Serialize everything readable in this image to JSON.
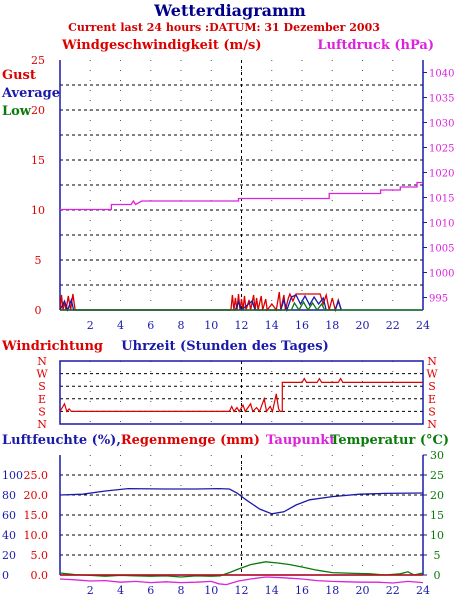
{
  "header": {
    "title": "Wetterdiagramm",
    "subtitle": "Current last 24 hours :DATUM: 31 Dezember 2003"
  },
  "colors": {
    "red": "#dd0000",
    "blue": "#1a1aaa",
    "green": "#0a7a0a",
    "magenta": "#dd22dd",
    "navy": "#00008b"
  },
  "chart_data": [
    {
      "type": "line",
      "name": "wind-pressure-panel",
      "ylabel_left": "Windgeschwindigkeit (m/s)",
      "ylabel_right": "Luftdruck (hPa)",
      "legend": [
        "Gust",
        "Average",
        "Low"
      ],
      "x_ticks": [
        "2",
        "4",
        "6",
        "8",
        "10",
        "12",
        "14",
        "16",
        "18",
        "20",
        "22",
        "24"
      ],
      "xlim": [
        0,
        24
      ],
      "ylim_left": [
        0,
        25
      ],
      "y_ticks_left": [
        "0",
        "5",
        "10",
        "15",
        "20",
        "25"
      ],
      "ylim_right": [
        992.5,
        1042.5
      ],
      "y_ticks_right": [
        "995",
        "1000",
        "1005",
        "1010",
        "1015",
        "1020",
        "1025",
        "1030",
        "1035",
        "1040"
      ],
      "series": [
        {
          "name": "Luftdruck",
          "axis": "right",
          "points": [
            [
              0,
              1012.6
            ],
            [
              3.4,
              1012.6
            ],
            [
              3.4,
              1013.6
            ],
            [
              4.7,
              1013.6
            ],
            [
              4.85,
              1014.3
            ],
            [
              5.0,
              1013.6
            ],
            [
              5.4,
              1014.3
            ],
            [
              11.8,
              1014.3
            ],
            [
              11.8,
              1014.8
            ],
            [
              17.8,
              1014.8
            ],
            [
              17.8,
              1015.8
            ],
            [
              21.2,
              1015.8
            ],
            [
              21.2,
              1016.5
            ],
            [
              22.5,
              1016.5
            ],
            [
              22.5,
              1017.1
            ],
            [
              23.6,
              1017.1
            ],
            [
              23.6,
              1018.0
            ],
            [
              24,
              1018.0
            ]
          ]
        },
        {
          "name": "Gust",
          "axis": "left",
          "points": [
            [
              0,
              0
            ],
            [
              0.1,
              1.5
            ],
            [
              0.2,
              0
            ],
            [
              0.3,
              0.8
            ],
            [
              0.4,
              0
            ],
            [
              0.55,
              1.4
            ],
            [
              0.7,
              0
            ],
            [
              0.85,
              1.6
            ],
            [
              1.0,
              0
            ],
            [
              11.3,
              0
            ],
            [
              11.4,
              1.5
            ],
            [
              11.5,
              0
            ],
            [
              11.6,
              1.2
            ],
            [
              11.7,
              0
            ],
            [
              11.8,
              1.6
            ],
            [
              11.9,
              0
            ],
            [
              12.0,
              1.1
            ],
            [
              12.1,
              0
            ],
            [
              12.2,
              1.4
            ],
            [
              12.3,
              0
            ],
            [
              12.5,
              1.0
            ],
            [
              12.6,
              0
            ],
            [
              12.8,
              1.5
            ],
            [
              12.9,
              0
            ],
            [
              13.0,
              1.2
            ],
            [
              13.1,
              0
            ],
            [
              13.3,
              1.4
            ],
            [
              13.4,
              0
            ],
            [
              13.6,
              1.1
            ],
            [
              13.7,
              0
            ],
            [
              14.0,
              0.6
            ],
            [
              14.3,
              0
            ],
            [
              14.5,
              1.8
            ],
            [
              14.6,
              0
            ],
            [
              14.8,
              1.5
            ],
            [
              14.9,
              0
            ],
            [
              15.1,
              1.2
            ],
            [
              15.2,
              1.6
            ],
            [
              15.4,
              0.9
            ],
            [
              15.6,
              1.6
            ],
            [
              17.2,
              1.6
            ],
            [
              17.4,
              0.6
            ],
            [
              17.6,
              1.5
            ],
            [
              17.8,
              0
            ],
            [
              18.0,
              1.2
            ],
            [
              18.2,
              0
            ],
            [
              18.4,
              1.0
            ],
            [
              18.6,
              0
            ]
          ]
        },
        {
          "name": "Average",
          "axis": "left",
          "points": [
            [
              0,
              0
            ],
            [
              0.3,
              0.9
            ],
            [
              0.5,
              0
            ],
            [
              0.75,
              1.0
            ],
            [
              0.9,
              0
            ],
            [
              11.6,
              0
            ],
            [
              11.8,
              0.8
            ],
            [
              12.0,
              0
            ],
            [
              12.7,
              0.9
            ],
            [
              12.9,
              0
            ],
            [
              14.6,
              0
            ],
            [
              14.8,
              1.0
            ],
            [
              15.0,
              0
            ],
            [
              15.3,
              1.3
            ],
            [
              15.6,
              1.5
            ],
            [
              15.9,
              0.6
            ],
            [
              16.2,
              1.4
            ],
            [
              16.5,
              0.5
            ],
            [
              16.8,
              1.3
            ],
            [
              17.1,
              0.6
            ],
            [
              17.4,
              1.2
            ],
            [
              17.6,
              0
            ],
            [
              18.2,
              0
            ],
            [
              18.4,
              0.9
            ],
            [
              18.6,
              0
            ]
          ]
        },
        {
          "name": "Low",
          "axis": "left",
          "points": [
            [
              0,
              0
            ],
            [
              15.3,
              0
            ],
            [
              15.5,
              0.7
            ],
            [
              15.8,
              0
            ],
            [
              16.1,
              0.8
            ],
            [
              16.4,
              0
            ],
            [
              16.7,
              0.7
            ],
            [
              17.0,
              0
            ],
            [
              17.3,
              0.6
            ],
            [
              17.5,
              0
            ],
            [
              24,
              0
            ]
          ]
        }
      ]
    },
    {
      "type": "line",
      "name": "wind-direction-panel",
      "ylabel_left": "Windrichtung",
      "xlabel": "Uhrzeit (Stunden des Tages)",
      "y_ticks": [
        "N",
        "S",
        "E",
        "S",
        "W",
        "N"
      ],
      "series": [
        {
          "name": "Windrichtung",
          "points": [
            [
              0,
              1.0
            ],
            [
              0.3,
              1.6
            ],
            [
              0.45,
              1.0
            ],
            [
              0.6,
              1.2
            ],
            [
              0.75,
              1.0
            ],
            [
              11.2,
              1.0
            ],
            [
              11.35,
              1.4
            ],
            [
              11.5,
              1.0
            ],
            [
              11.7,
              1.3
            ],
            [
              11.85,
              1.0
            ],
            [
              12.1,
              1.5
            ],
            [
              12.25,
              1.0
            ],
            [
              12.6,
              1.6
            ],
            [
              12.75,
              1.0
            ],
            [
              13.0,
              1.3
            ],
            [
              13.2,
              1.0
            ],
            [
              13.5,
              2.0
            ],
            [
              13.65,
              1.0
            ],
            [
              13.9,
              1.4
            ],
            [
              14.05,
              1.0
            ],
            [
              14.3,
              2.4
            ],
            [
              14.45,
              1.2
            ],
            [
              14.55,
              1.0
            ],
            [
              14.7,
              1.0
            ],
            [
              14.7,
              3.3
            ],
            [
              16.0,
              3.3
            ],
            [
              16.15,
              3.6
            ],
            [
              16.3,
              3.3
            ],
            [
              17.0,
              3.3
            ],
            [
              17.15,
              3.6
            ],
            [
              17.3,
              3.3
            ],
            [
              18.4,
              3.3
            ],
            [
              18.55,
              3.6
            ],
            [
              18.7,
              3.3
            ],
            [
              24,
              3.3
            ]
          ]
        }
      ]
    },
    {
      "type": "line",
      "name": "humidity-temperature-panel",
      "ylabel_left": "Luftfeuchte (%),Regenmenge (mm)",
      "ylabel_mid": "Taupunkt",
      "ylabel_right": "Temperatur (°C)",
      "x_ticks": [
        "2",
        "4",
        "6",
        "8",
        "10",
        "12",
        "14",
        "16",
        "18",
        "20",
        "22",
        "24"
      ],
      "y_ticks_left_outer": [
        "0",
        "20",
        "40",
        "60",
        "80",
        "100"
      ],
      "y_ticks_left_inner": [
        "0.0",
        "5.0",
        "10.0",
        "15.0",
        "20.0",
        "25.0"
      ],
      "y_ticks_right": [
        "0",
        "5",
        "10",
        "15",
        "20",
        "25",
        "30"
      ],
      "ylim_right": [
        0,
        30
      ],
      "series": [
        {
          "name": "Luftfeuchte",
          "points": [
            [
              0,
              20.0
            ],
            [
              1.5,
              20.2
            ],
            [
              3.0,
              21.0
            ],
            [
              4.5,
              21.6
            ],
            [
              7,
              21.5
            ],
            [
              9,
              21.5
            ],
            [
              10.5,
              21.6
            ],
            [
              11.2,
              21.5
            ],
            [
              11.7,
              20.5
            ],
            [
              12.3,
              18.8
            ],
            [
              13.2,
              16.5
            ],
            [
              14,
              15.3
            ],
            [
              14.8,
              15.8
            ],
            [
              15.6,
              17.5
            ],
            [
              16.5,
              18.8
            ],
            [
              18,
              19.6
            ],
            [
              19.8,
              20.2
            ],
            [
              21.5,
              20.4
            ],
            [
              24,
              20.5
            ]
          ]
        },
        {
          "name": "Temperatur",
          "points": [
            [
              0,
              0.5
            ],
            [
              1,
              0.1
            ],
            [
              2,
              -0.1
            ],
            [
              3,
              -0.3
            ],
            [
              4,
              -0.1
            ],
            [
              5,
              -0.2
            ],
            [
              6,
              -0.3
            ],
            [
              7,
              -0.2
            ],
            [
              8,
              -0.5
            ],
            [
              9,
              -0.2
            ],
            [
              10,
              -0.3
            ],
            [
              10.6,
              -0.2
            ],
            [
              11.2,
              0.6
            ],
            [
              11.8,
              1.5
            ],
            [
              12.6,
              2.6
            ],
            [
              13.6,
              3.3
            ],
            [
              14.4,
              3.0
            ],
            [
              15.2,
              2.6
            ],
            [
              16,
              2.0
            ],
            [
              17,
              1.2
            ],
            [
              18,
              0.6
            ],
            [
              19.5,
              0.4
            ],
            [
              20.5,
              0.3
            ],
            [
              21.5,
              0.0
            ],
            [
              22.5,
              0.3
            ],
            [
              23,
              0.8
            ],
            [
              23.4,
              0.0
            ],
            [
              24,
              0.5
            ]
          ]
        },
        {
          "name": "Taupunkt",
          "points": [
            [
              0,
              -1.0
            ],
            [
              1,
              -1.2
            ],
            [
              2,
              -1.5
            ],
            [
              3,
              -1.4
            ],
            [
              4,
              -1.8
            ],
            [
              5,
              -1.6
            ],
            [
              6,
              -1.9
            ],
            [
              7,
              -1.7
            ],
            [
              8,
              -1.9
            ],
            [
              9,
              -1.8
            ],
            [
              10,
              -1.6
            ],
            [
              10.5,
              -2.2
            ],
            [
              11,
              -2.4
            ],
            [
              11.8,
              -1.5
            ],
            [
              12.6,
              -1.0
            ],
            [
              13.6,
              -0.5
            ],
            [
              14.8,
              -0.7
            ],
            [
              16,
              -1.0
            ],
            [
              17,
              -1.4
            ],
            [
              18,
              -1.6
            ],
            [
              19,
              -1.7
            ],
            [
              20,
              -1.8
            ],
            [
              21,
              -1.8
            ],
            [
              22,
              -2.0
            ],
            [
              23,
              -1.6
            ],
            [
              24,
              -1.9
            ]
          ]
        },
        {
          "name": "Regenmenge",
          "points": [
            [
              0,
              0
            ],
            [
              24,
              0
            ]
          ]
        }
      ]
    }
  ]
}
